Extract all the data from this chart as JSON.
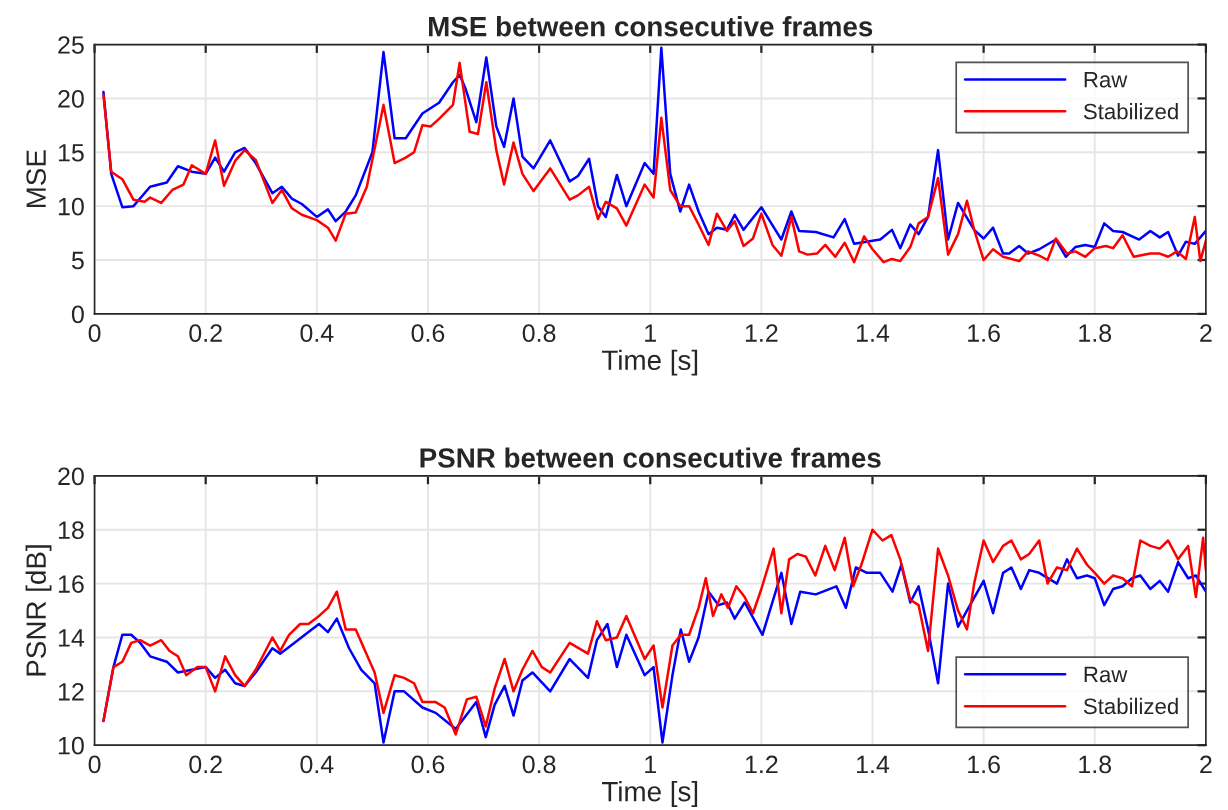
{
  "chart_data": [
    {
      "type": "line",
      "title": "MSE between consecutive frames",
      "xlabel": "Time [s]",
      "ylabel": "MSE",
      "xlim": [
        0,
        2
      ],
      "xticks": [
        0,
        0.2,
        0.4,
        0.6,
        0.8,
        1,
        1.2,
        1.4,
        1.6,
        1.8,
        2
      ],
      "ylim": [
        0,
        25
      ],
      "yticks": [
        0,
        5,
        10,
        15,
        20,
        25
      ],
      "grid": true,
      "legend": "top right",
      "series": [
        {
          "name": "Raw",
          "color": "#0000ff",
          "x": [
            0.016,
            0.03,
            0.05,
            0.07,
            0.1,
            0.13,
            0.15,
            0.175,
            0.2,
            0.217,
            0.233,
            0.253,
            0.27,
            0.29,
            0.32,
            0.337,
            0.355,
            0.373,
            0.4,
            0.42,
            0.434,
            0.452,
            0.47,
            0.5,
            0.52,
            0.54,
            0.56,
            0.59,
            0.62,
            0.645,
            0.657,
            0.667,
            0.687,
            0.705,
            0.723,
            0.737,
            0.754,
            0.77,
            0.79,
            0.82,
            0.855,
            0.87,
            0.89,
            0.906,
            0.92,
            0.94,
            0.957,
            0.99,
            1.006,
            1.02,
            1.036,
            1.054,
            1.07,
            1.087,
            1.105,
            1.12,
            1.138,
            1.152,
            1.168,
            1.2,
            1.236,
            1.254,
            1.268,
            1.298,
            1.33,
            1.35,
            1.367,
            1.414,
            1.435,
            1.45,
            1.468,
            1.483,
            1.5,
            1.518,
            1.536,
            1.554,
            1.583,
            1.6,
            1.617,
            1.635,
            1.646,
            1.664,
            1.68,
            1.7,
            1.73,
            1.748,
            1.765,
            1.783,
            1.8,
            1.817,
            1.833,
            1.85,
            1.88,
            1.9,
            1.917,
            1.932,
            1.95,
            1.964,
            1.98,
            2.0
          ],
          "values": [
            20.6,
            13.0,
            9.9,
            10.0,
            11.8,
            12.2,
            13.7,
            13.2,
            13.0,
            14.5,
            13.2,
            15.0,
            15.4,
            14.0,
            11.2,
            11.8,
            10.7,
            10.2,
            9.0,
            9.7,
            8.6,
            9.5,
            11.0,
            15.0,
            24.3,
            16.3,
            16.3,
            18.6,
            19.6,
            21.5,
            22.2,
            21.0,
            17.8,
            23.8,
            17.4,
            15.5,
            20.0,
            14.6,
            13.5,
            16.1,
            12.3,
            12.8,
            14.4,
            10.0,
            9.0,
            12.9,
            10.0,
            14.0,
            13.0,
            24.7,
            13.0,
            9.5,
            12.0,
            9.5,
            7.4,
            8.0,
            7.8,
            9.2,
            7.8,
            9.9,
            6.9,
            9.5,
            7.7,
            7.6,
            7.1,
            8.8,
            6.5,
            6.9,
            7.8,
            6.1,
            8.3,
            7.4,
            9.0,
            15.2,
            6.9,
            10.3,
            7.8,
            7.0,
            8.0,
            5.6,
            5.6,
            6.3,
            5.6,
            6.0,
            6.9,
            5.3,
            6.2,
            6.4,
            6.2,
            8.4,
            7.7,
            7.6,
            6.9,
            7.7,
            7.1,
            7.6,
            5.4,
            6.7,
            6.5,
            7.7
          ]
        },
        {
          "name": "Stabilized",
          "color": "#ff0000",
          "x": [
            0.016,
            0.03,
            0.05,
            0.07,
            0.09,
            0.1,
            0.12,
            0.14,
            0.16,
            0.175,
            0.2,
            0.217,
            0.233,
            0.253,
            0.27,
            0.29,
            0.32,
            0.337,
            0.355,
            0.373,
            0.4,
            0.42,
            0.434,
            0.452,
            0.47,
            0.49,
            0.52,
            0.54,
            0.56,
            0.575,
            0.59,
            0.605,
            0.62,
            0.645,
            0.657,
            0.675,
            0.69,
            0.705,
            0.723,
            0.737,
            0.754,
            0.77,
            0.79,
            0.82,
            0.855,
            0.87,
            0.89,
            0.906,
            0.92,
            0.94,
            0.957,
            0.99,
            1.006,
            1.02,
            1.036,
            1.054,
            1.07,
            1.087,
            1.105,
            1.12,
            1.138,
            1.152,
            1.168,
            1.185,
            1.2,
            1.22,
            1.236,
            1.254,
            1.268,
            1.283,
            1.3,
            1.315,
            1.333,
            1.35,
            1.367,
            1.385,
            1.4,
            1.42,
            1.435,
            1.45,
            1.468,
            1.483,
            1.5,
            1.518,
            1.536,
            1.554,
            1.57,
            1.583,
            1.6,
            1.617,
            1.635,
            1.664,
            1.68,
            1.7,
            1.715,
            1.73,
            1.75,
            1.765,
            1.783,
            1.8,
            1.82,
            1.833,
            1.85,
            1.87,
            1.9,
            1.917,
            1.932,
            1.948,
            1.964,
            1.98,
            1.99,
            2.0
          ],
          "values": [
            20.3,
            13.2,
            12.5,
            10.6,
            10.4,
            10.8,
            10.3,
            11.5,
            12.0,
            13.8,
            13.0,
            16.1,
            11.9,
            14.2,
            15.2,
            14.3,
            10.3,
            11.5,
            9.8,
            9.2,
            8.7,
            8.0,
            6.8,
            9.3,
            9.4,
            11.8,
            19.4,
            14.0,
            14.5,
            15.0,
            17.5,
            17.4,
            18.1,
            19.4,
            23.3,
            16.9,
            16.7,
            21.5,
            15.2,
            12.0,
            15.9,
            13.0,
            11.4,
            13.5,
            10.6,
            11.0,
            11.8,
            8.8,
            10.4,
            9.8,
            8.2,
            12.0,
            10.8,
            18.2,
            11.5,
            10.0,
            10.0,
            8.3,
            6.4,
            9.3,
            7.7,
            8.6,
            6.3,
            7.0,
            9.3,
            6.4,
            5.4,
            9.0,
            5.8,
            5.5,
            5.6,
            6.4,
            5.3,
            6.6,
            4.8,
            7.2,
            6.0,
            4.8,
            5.1,
            4.9,
            6.2,
            8.4,
            9.0,
            12.6,
            5.5,
            7.4,
            10.5,
            7.8,
            5.0,
            6.0,
            5.3,
            4.9,
            5.8,
            5.4,
            5.0,
            7.0,
            5.6,
            5.8,
            5.3,
            6.1,
            6.3,
            6.1,
            7.3,
            5.3,
            5.6,
            5.6,
            5.3,
            5.8,
            5.1,
            9.0,
            4.9,
            6.8
          ]
        }
      ]
    },
    {
      "type": "line",
      "title": "PSNR between consecutive frames",
      "xlabel": "Time [s]",
      "ylabel": "PSNR [dB]",
      "xlim": [
        0,
        2
      ],
      "xticks": [
        0,
        0.2,
        0.4,
        0.6,
        0.8,
        1,
        1.2,
        1.4,
        1.6,
        1.8,
        2
      ],
      "ylim": [
        10,
        20
      ],
      "yticks": [
        10,
        12,
        14,
        16,
        18,
        20
      ],
      "grid": true,
      "legend": "bottom right",
      "series": [
        {
          "name": "Raw",
          "color": "#0000ff",
          "x": [
            0.016,
            0.034,
            0.05,
            0.066,
            0.082,
            0.1,
            0.13,
            0.15,
            0.175,
            0.2,
            0.217,
            0.235,
            0.253,
            0.27,
            0.29,
            0.32,
            0.334,
            0.36,
            0.385,
            0.404,
            0.42,
            0.436,
            0.458,
            0.48,
            0.504,
            0.52,
            0.54,
            0.557,
            0.59,
            0.614,
            0.65,
            0.687,
            0.704,
            0.72,
            0.738,
            0.754,
            0.77,
            0.788,
            0.82,
            0.855,
            0.888,
            0.904,
            0.923,
            0.94,
            0.957,
            0.99,
            1.006,
            1.022,
            1.04,
            1.055,
            1.07,
            1.087,
            1.105,
            1.123,
            1.138,
            1.152,
            1.17,
            1.202,
            1.236,
            1.254,
            1.27,
            1.298,
            1.335,
            1.352,
            1.37,
            1.39,
            1.414,
            1.436,
            1.452,
            1.468,
            1.483,
            1.5,
            1.518,
            1.536,
            1.554,
            1.57,
            1.6,
            1.617,
            1.635,
            1.65,
            1.667,
            1.682,
            1.7,
            1.732,
            1.75,
            1.768,
            1.786,
            1.8,
            1.817,
            1.833,
            1.85,
            1.867,
            1.882,
            1.9,
            1.917,
            1.932,
            1.95,
            1.968,
            1.982,
            2.0
          ],
          "values": [
            10.9,
            12.9,
            14.1,
            14.1,
            13.8,
            13.3,
            13.1,
            12.7,
            12.8,
            12.9,
            12.5,
            12.8,
            12.3,
            12.2,
            12.7,
            13.6,
            13.4,
            13.8,
            14.2,
            14.5,
            14.2,
            14.7,
            13.6,
            12.8,
            12.3,
            10.1,
            12.0,
            12.0,
            11.4,
            11.2,
            10.6,
            11.6,
            10.3,
            11.5,
            12.2,
            11.1,
            12.4,
            12.7,
            12.0,
            13.2,
            12.5,
            13.9,
            14.5,
            12.9,
            14.1,
            12.6,
            12.9,
            10.1,
            12.6,
            14.3,
            13.1,
            14.0,
            15.7,
            15.2,
            15.3,
            14.7,
            15.3,
            14.1,
            16.4,
            14.5,
            15.7,
            15.6,
            15.9,
            15.1,
            16.6,
            16.4,
            16.4,
            15.7,
            16.7,
            15.3,
            15.9,
            14.3,
            12.3,
            16.0,
            14.4,
            15.0,
            16.1,
            14.9,
            16.4,
            16.6,
            15.8,
            16.5,
            16.4,
            16.0,
            16.9,
            16.2,
            16.3,
            16.2,
            15.2,
            15.8,
            15.9,
            16.2,
            16.3,
            15.8,
            16.1,
            15.7,
            16.8,
            16.2,
            16.3,
            15.7
          ]
        },
        {
          "name": "Stabilized",
          "color": "#ff0000",
          "x": [
            0.016,
            0.034,
            0.05,
            0.066,
            0.082,
            0.1,
            0.12,
            0.135,
            0.15,
            0.165,
            0.185,
            0.2,
            0.217,
            0.235,
            0.253,
            0.27,
            0.29,
            0.32,
            0.334,
            0.35,
            0.37,
            0.385,
            0.404,
            0.42,
            0.436,
            0.452,
            0.47,
            0.504,
            0.52,
            0.54,
            0.557,
            0.575,
            0.59,
            0.614,
            0.63,
            0.65,
            0.67,
            0.687,
            0.704,
            0.72,
            0.738,
            0.754,
            0.77,
            0.788,
            0.805,
            0.82,
            0.855,
            0.888,
            0.904,
            0.92,
            0.94,
            0.957,
            0.99,
            1.006,
            1.022,
            1.04,
            1.055,
            1.07,
            1.087,
            1.1,
            1.113,
            1.128,
            1.14,
            1.155,
            1.17,
            1.185,
            1.2,
            1.222,
            1.236,
            1.25,
            1.265,
            1.28,
            1.297,
            1.315,
            1.332,
            1.35,
            1.365,
            1.38,
            1.4,
            1.418,
            1.434,
            1.45,
            1.468,
            1.483,
            1.5,
            1.518,
            1.536,
            1.554,
            1.57,
            1.583,
            1.6,
            1.617,
            1.635,
            1.65,
            1.667,
            1.682,
            1.7,
            1.715,
            1.732,
            1.75,
            1.768,
            1.786,
            1.8,
            1.817,
            1.833,
            1.85,
            1.867,
            1.882,
            1.9,
            1.917,
            1.932,
            1.95,
            1.968,
            1.982,
            1.995,
            2.0
          ],
          "values": [
            10.9,
            12.9,
            13.1,
            13.8,
            13.9,
            13.7,
            13.9,
            13.5,
            13.3,
            12.6,
            12.9,
            12.9,
            12.0,
            13.3,
            12.6,
            12.2,
            12.8,
            14.0,
            13.5,
            14.1,
            14.5,
            14.5,
            14.8,
            15.1,
            15.7,
            14.3,
            14.3,
            12.7,
            11.2,
            12.6,
            12.5,
            12.3,
            11.6,
            11.6,
            11.4,
            10.4,
            11.7,
            11.8,
            10.7,
            12.1,
            13.2,
            12.0,
            12.8,
            13.5,
            12.9,
            12.7,
            13.8,
            13.4,
            14.6,
            13.9,
            14.0,
            14.8,
            13.2,
            13.7,
            11.4,
            13.7,
            14.1,
            14.1,
            15.1,
            16.2,
            14.8,
            15.6,
            15.1,
            15.9,
            15.5,
            14.9,
            15.8,
            17.3,
            14.9,
            16.9,
            17.1,
            17.0,
            16.3,
            17.4,
            16.5,
            17.7,
            15.9,
            16.7,
            18.0,
            17.6,
            17.8,
            16.9,
            15.4,
            15.2,
            13.5,
            17.3,
            16.3,
            15.0,
            14.3,
            16.0,
            17.6,
            16.8,
            17.4,
            17.6,
            16.9,
            17.1,
            17.6,
            16.0,
            16.6,
            16.5,
            17.3,
            16.7,
            16.4,
            16.0,
            16.3,
            16.2,
            15.9,
            17.6,
            17.4,
            17.3,
            17.6,
            16.9,
            17.4,
            15.5,
            17.7,
            16.5
          ]
        }
      ]
    }
  ]
}
